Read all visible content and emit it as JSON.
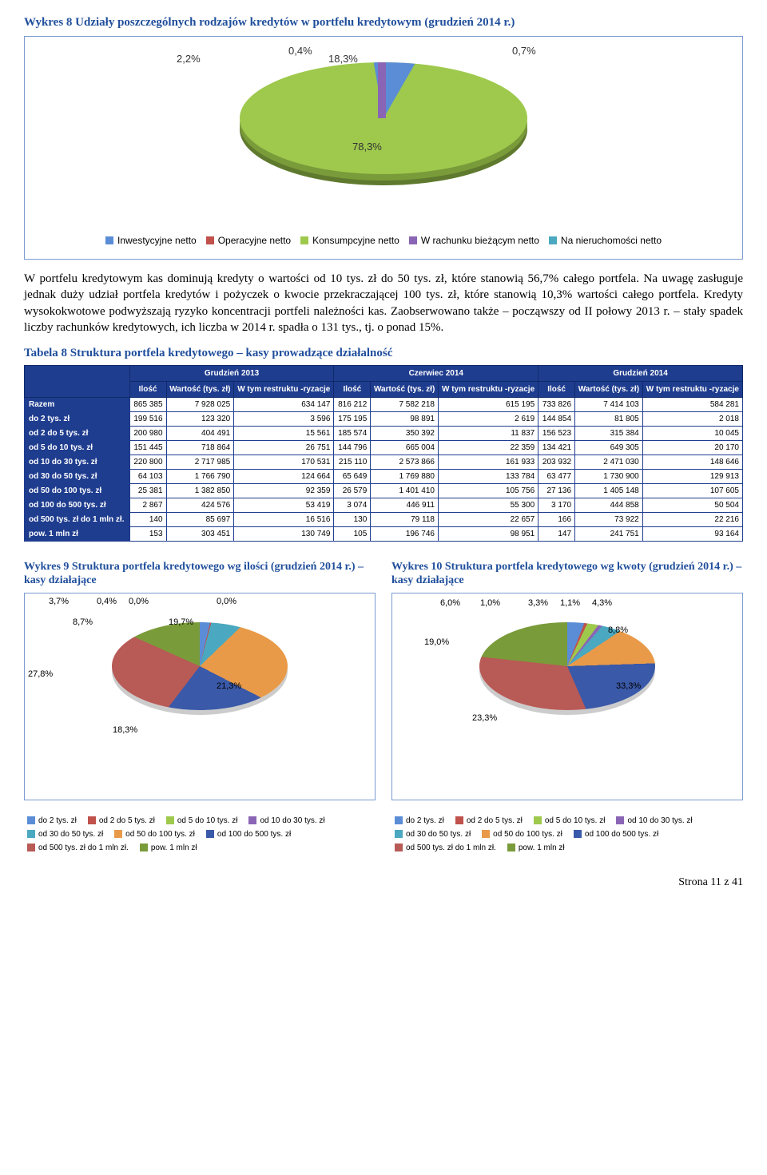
{
  "chart8": {
    "title": "Wykres 8 Udziały poszczególnych rodzajów kredytów w portfelu kredytowym (grudzień 2014 r.)",
    "labels": {
      "a": "2,2%",
      "b": "0,4%",
      "c": "18,3%",
      "d": "0,7%",
      "e": "78,3%"
    },
    "legend": [
      {
        "label": "Inwestycyjne netto",
        "color": "#5b8dd6"
      },
      {
        "label": "Operacyjne netto",
        "color": "#c0514b"
      },
      {
        "label": "Konsumpcyjne netto",
        "color": "#9ec94d"
      },
      {
        "label": "W rachunku bieżącym netto",
        "color": "#8b65b5"
      },
      {
        "label": "Na nieruchomości netto",
        "color": "#4aa8c0"
      }
    ]
  },
  "body_text": "W portfelu kredytowym kas dominują kredyty o wartości od 10 tys. zł do 50 tys. zł, które stanowią 56,7% całego portfela. Na uwagę zasługuje jednak duży udział portfela kredytów i pożyczek o kwocie przekraczającej 100 tys. zł, które stanowią 10,3% wartości całego portfela. Kredyty wysokokwotowe podwyższają ryzyko koncentracji portfeli należności kas. Zaobserwowano także – począwszy od II połowy 2013 r. – stały spadek liczby rachunków kredytowych, ich liczba w 2014 r. spadła o 131 tys., tj. o ponad 15%.",
  "table8": {
    "title": "Tabela 8 Struktura portfela kredytowego – kasy prowadzące działalność",
    "period_headers": [
      "Grudzień 2013",
      "Czerwiec 2014",
      "Grudzień 2014"
    ],
    "sub_headers": [
      "Ilość",
      "Wartość (tys. zł)",
      "W tym restruktu -ryzacje"
    ],
    "rows": [
      {
        "label": "Razem",
        "vals": [
          "865 385",
          "7 928 025",
          "634 147",
          "816 212",
          "7 582 218",
          "615 195",
          "733 826",
          "7 414 103",
          "584 281"
        ]
      },
      {
        "label": "do 2 tys. zł",
        "vals": [
          "199 516",
          "123 320",
          "3 596",
          "175 195",
          "98 891",
          "2 619",
          "144 854",
          "81 805",
          "2 018"
        ]
      },
      {
        "label": "od 2 do 5 tys. zł",
        "vals": [
          "200 980",
          "404 491",
          "15 561",
          "185 574",
          "350 392",
          "11 837",
          "156 523",
          "315 384",
          "10 045"
        ]
      },
      {
        "label": "od 5 do 10 tys. zł",
        "vals": [
          "151 445",
          "718 864",
          "26 751",
          "144 796",
          "665 004",
          "22 359",
          "134 421",
          "649 305",
          "20 170"
        ]
      },
      {
        "label": "od 10 do 30 tys. zł",
        "vals": [
          "220 800",
          "2 717 985",
          "170 531",
          "215 110",
          "2 573 866",
          "161 933",
          "203 932",
          "2 471 030",
          "148 646"
        ]
      },
      {
        "label": "od 30 do 50 tys. zł",
        "vals": [
          "64 103",
          "1 766 790",
          "124 664",
          "65 649",
          "1 769 880",
          "133 784",
          "63 477",
          "1 730 900",
          "129 913"
        ]
      },
      {
        "label": "od 50 do 100 tys. zł",
        "vals": [
          "25 381",
          "1 382 850",
          "92 359",
          "26 579",
          "1 401 410",
          "105 756",
          "27 136",
          "1 405 148",
          "107 605"
        ]
      },
      {
        "label": "od 100 do 500 tys. zł",
        "vals": [
          "2 867",
          "424 576",
          "53 419",
          "3 074",
          "446 911",
          "55 300",
          "3 170",
          "444 858",
          "50 504"
        ]
      },
      {
        "label": "od 500 tys. zł do 1 mln zł.",
        "vals": [
          "140",
          "85 697",
          "16 516",
          "130",
          "79 118",
          "22 657",
          "166",
          "73 922",
          "22 216"
        ]
      },
      {
        "label": "pow. 1 mln zł",
        "vals": [
          "153",
          "303 451",
          "130 749",
          "105",
          "196 746",
          "98 951",
          "147",
          "241 751",
          "93 164"
        ]
      }
    ]
  },
  "chart9": {
    "title": "Wykres 9 Struktura portfela kredytowego wg ilości (grudzień 2014 r.) – kasy działające",
    "labels": [
      "3,7%",
      "0,4%",
      "0,0%",
      "0,0%",
      "8,7%",
      "19,7%",
      "27,8%",
      "21,3%",
      "18,3%"
    ],
    "colors": [
      "#5b8dd6",
      "#c0514b",
      "#9ec94d",
      "#8b65b5",
      "#4aa8c0",
      "#e89a48",
      "#3a59a8",
      "#b85a56",
      "#7a9b3a"
    ]
  },
  "chart10": {
    "title": "Wykres 10 Struktura portfela kredytowego wg kwoty (grudzień 2014 r.) – kasy działające",
    "labels": [
      "6,0%",
      "1,0%",
      "3,3%",
      "1,1%",
      "4,3%",
      "8,8%",
      "19,0%",
      "33,3%",
      "23,3%"
    ],
    "colors": [
      "#5b8dd6",
      "#c0514b",
      "#9ec94d",
      "#8b65b5",
      "#4aa8c0",
      "#e89a48",
      "#3a59a8",
      "#b85a56",
      "#7a9b3a"
    ]
  },
  "legend9": [
    {
      "label": "do 2 tys. zł",
      "color": "#5b8dd6"
    },
    {
      "label": "od 2 do 5 tys. zł",
      "color": "#c0514b"
    },
    {
      "label": "od 5 do 10 tys. zł",
      "color": "#9ec94d"
    },
    {
      "label": "od 10 do 30 tys. zł",
      "color": "#8b65b5"
    },
    {
      "label": "od 30 do 50 tys. zł",
      "color": "#4aa8c0"
    },
    {
      "label": "od 50 do 100 tys. zł",
      "color": "#e89a48"
    },
    {
      "label": "od 100 do 500 tys. zł",
      "color": "#3a59a8"
    },
    {
      "label": "od 500 tys. zł do 1 mln zł.",
      "color": "#b85a56"
    },
    {
      "label": "pow. 1 mln zł",
      "color": "#7a9b3a"
    }
  ],
  "legend10": [
    {
      "label": "do 2 tys. zł",
      "color": "#5b8dd6"
    },
    {
      "label": "od 2 do 5 tys. zł",
      "color": "#c0514b"
    },
    {
      "label": "od 5 do 10 tys. zł",
      "color": "#9ec94d"
    },
    {
      "label": "od 10 do 30 tys. zł",
      "color": "#8b65b5"
    },
    {
      "label": "od 30 do 50 tys. zł",
      "color": "#4aa8c0"
    },
    {
      "label": "od 50 do 100 tys. zł",
      "color": "#e89a48"
    },
    {
      "label": "od 100 do 500 tys. zł",
      "color": "#3a59a8"
    },
    {
      "label": "od 500 tys. zł do 1 mln zł.",
      "color": "#b85a56"
    },
    {
      "label": "pow. 1 mln zł",
      "color": "#7a9b3a"
    }
  ],
  "footer": "Strona 11 z 41"
}
